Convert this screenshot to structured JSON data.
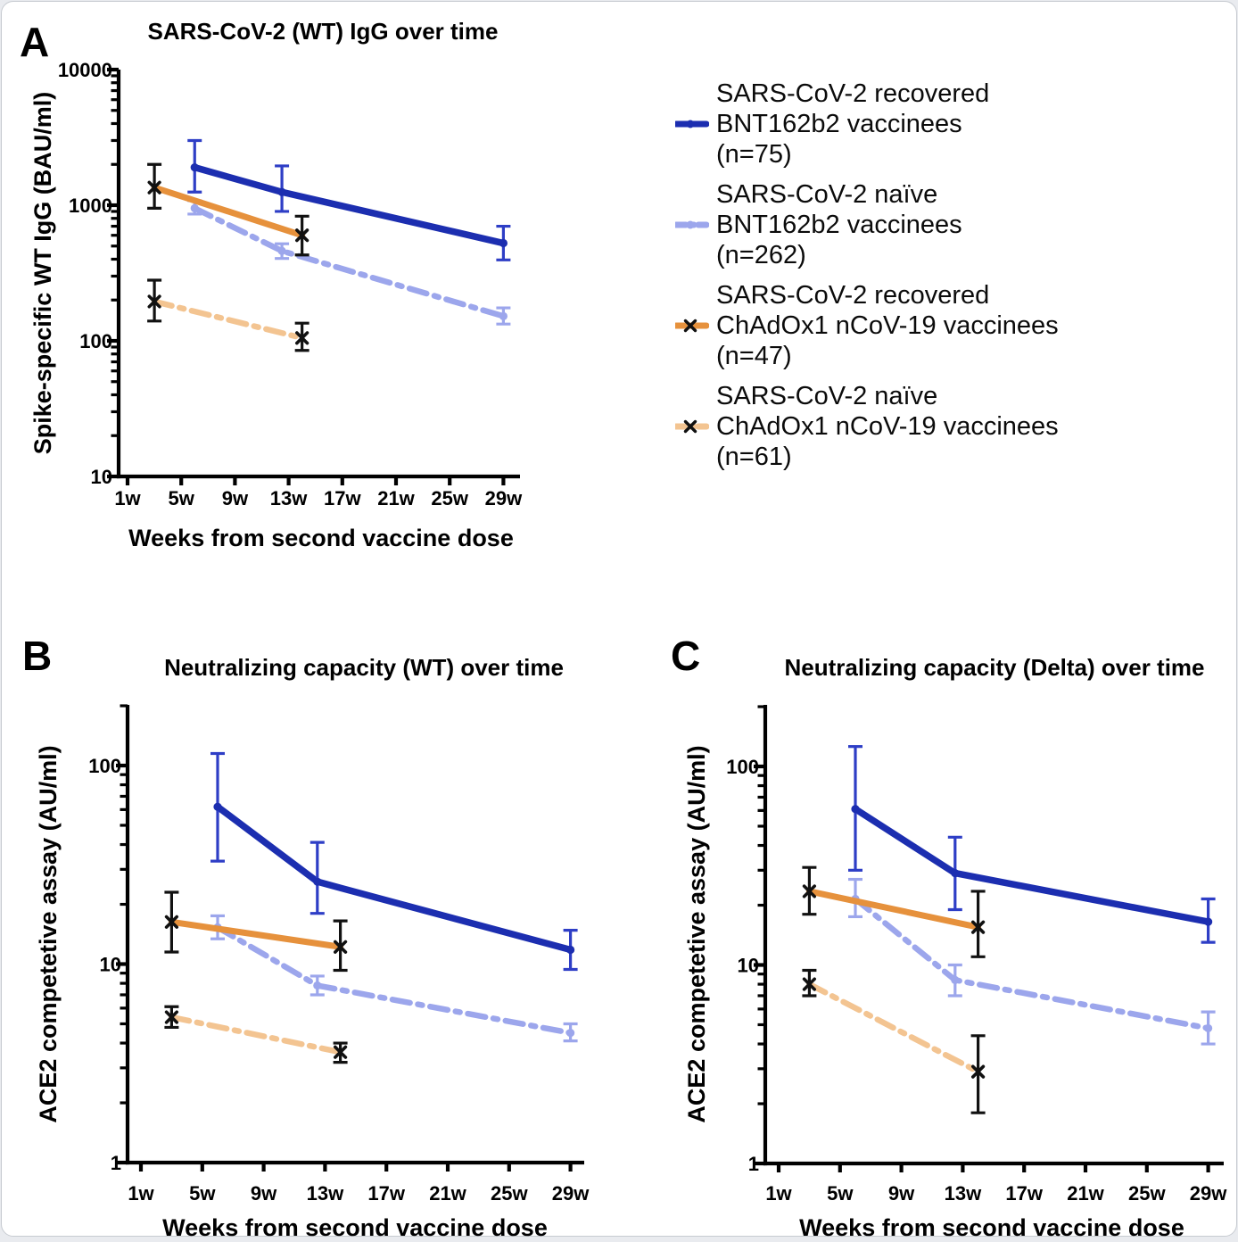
{
  "colors": {
    "dark_blue": "#1c2eb0",
    "dark_blue_err": "#2e3ec6",
    "light_blue": "#9ca6ec",
    "orange": "#e6913c",
    "light_orange": "#f3c491",
    "black": "#111111",
    "axis": "#000000"
  },
  "panel_letters": [
    "A",
    "B",
    "C"
  ],
  "legend": {
    "entries": [
      {
        "line1": "SARS-CoV-2 recovered",
        "line2": "BNT162b2 vaccinees",
        "line3": "(n=75)",
        "series_key": "recovered_bnt",
        "marker": "dot",
        "line_style": "solid",
        "color": "dark_blue"
      },
      {
        "line1": "SARS-CoV-2 naïve",
        "line2": "BNT162b2 vaccinees",
        "line3": "(n=262)",
        "series_key": "naive_bnt",
        "marker": "dot",
        "line_style": "dash_dot",
        "color": "light_blue"
      },
      {
        "line1": "SARS-CoV-2 recovered",
        "line2": "ChAdOx1 nCoV-19 vaccinees",
        "line3": "(n=47)",
        "series_key": "recovered_chad",
        "marker": "x",
        "line_style": "solid",
        "color": "orange"
      },
      {
        "line1": "SARS-CoV-2 naïve",
        "line2": "ChAdOx1 nCoV-19 vaccinees",
        "line3": "(n=61)",
        "series_key": "naive_chad",
        "marker": "x",
        "line_style": "dash_dot",
        "color": "light_orange"
      }
    ]
  },
  "chart_data": [
    {
      "type": "line",
      "panel": "A",
      "title": "SARS-CoV-2 (WT) IgG over time",
      "xlabel": "Weeks from second vaccine dose",
      "ylabel": "Spike-specific WT IgG (BAU/ml)",
      "yscale": "log",
      "ylim": [
        10,
        10000
      ],
      "y_tick_labels": [
        "10",
        "100",
        "1000",
        "10000"
      ],
      "x_tick_labels": [
        "1w",
        "5w",
        "9w",
        "13w",
        "17w",
        "21w",
        "25w",
        "29w"
      ],
      "x_tick_weeks": [
        1,
        5,
        9,
        13,
        17,
        21,
        25,
        29
      ],
      "grid": false,
      "series": [
        {
          "key": "recovered_bnt",
          "name": "SARS-CoV-2 recovered BNT162b2 vaccinees (n=75)",
          "color": "dark_blue",
          "error_color": "dark_blue_err",
          "line": "solid",
          "marker": "dot",
          "points": [
            {
              "week": 6,
              "y": 1900,
              "lo": 1250,
              "hi": 3000
            },
            {
              "week": 12.5,
              "y": 1250,
              "lo": 900,
              "hi": 1950
            },
            {
              "week": 29,
              "y": 525,
              "lo": 395,
              "hi": 700
            }
          ]
        },
        {
          "key": "naive_bnt",
          "name": "SARS-CoV-2 naïve BNT162b2 vaccinees (n=262)",
          "color": "light_blue",
          "error_color": "light_blue",
          "line": "dash_dot",
          "marker": "dot",
          "points": [
            {
              "week": 6,
              "y": 950,
              "lo": 860,
              "hi": 1080
            },
            {
              "week": 12.5,
              "y": 460,
              "lo": 405,
              "hi": 520
            },
            {
              "week": 29,
              "y": 152,
              "lo": 133,
              "hi": 175
            }
          ]
        },
        {
          "key": "recovered_chad",
          "name": "SARS-CoV-2 recovered ChAdOx1 nCoV-19 vaccinees (n=47)",
          "color": "orange",
          "error_color": "black",
          "line": "solid",
          "marker": "x",
          "points": [
            {
              "week": 3,
              "y": 1350,
              "lo": 950,
              "hi": 2000
            },
            {
              "week": 14,
              "y": 600,
              "lo": 430,
              "hi": 830
            }
          ]
        },
        {
          "key": "naive_chad",
          "name": "SARS-CoV-2 naïve ChAdOx1 nCoV-19 vaccinees (n=61)",
          "color": "light_orange",
          "error_color": "black",
          "line": "dash_dot",
          "marker": "x",
          "points": [
            {
              "week": 3,
              "y": 195,
              "lo": 140,
              "hi": 280
            },
            {
              "week": 14,
              "y": 105,
              "lo": 85,
              "hi": 135
            }
          ]
        }
      ]
    },
    {
      "type": "line",
      "panel": "B",
      "title": "Neutralizing capacity (WT) over time",
      "xlabel": "Weeks from second vaccine dose",
      "ylabel": "ACE2 competetive assay (AU/ml)",
      "yscale": "log",
      "ylim": [
        1,
        200
      ],
      "y_tick_labels": [
        "1",
        "10",
        "100"
      ],
      "x_tick_labels": [
        "1w",
        "5w",
        "9w",
        "13w",
        "17w",
        "21w",
        "25w",
        "29w"
      ],
      "x_tick_weeks": [
        1,
        5,
        9,
        13,
        17,
        21,
        25,
        29
      ],
      "grid": false,
      "series": [
        {
          "key": "recovered_bnt",
          "name": "SARS-CoV-2 recovered BNT162b2 vaccinees (n=75)",
          "color": "dark_blue",
          "error_color": "dark_blue_err",
          "line": "solid",
          "marker": "dot",
          "points": [
            {
              "week": 6,
              "y": 62,
              "lo": 33,
              "hi": 115
            },
            {
              "week": 12.5,
              "y": 26,
              "lo": 18,
              "hi": 41
            },
            {
              "week": 29,
              "y": 11.8,
              "lo": 9.4,
              "hi": 14.8
            }
          ]
        },
        {
          "key": "naive_bnt",
          "name": "SARS-CoV-2 naïve BNT162b2 vaccinees (n=262)",
          "color": "light_blue",
          "error_color": "light_blue",
          "line": "dash_dot",
          "marker": "dot",
          "points": [
            {
              "week": 6,
              "y": 15.3,
              "lo": 13.4,
              "hi": 17.5
            },
            {
              "week": 12.5,
              "y": 7.8,
              "lo": 7.0,
              "hi": 8.7
            },
            {
              "week": 29,
              "y": 4.5,
              "lo": 4.1,
              "hi": 5.0
            }
          ]
        },
        {
          "key": "recovered_chad",
          "name": "SARS-CoV-2 recovered ChAdOx1 nCoV-19 vaccinees (n=47)",
          "color": "orange",
          "error_color": "black",
          "line": "solid",
          "marker": "x",
          "points": [
            {
              "week": 3,
              "y": 16.3,
              "lo": 11.5,
              "hi": 23
            },
            {
              "week": 14,
              "y": 12.2,
              "lo": 9.3,
              "hi": 16.5
            }
          ]
        },
        {
          "key": "naive_chad",
          "name": "SARS-CoV-2 naïve ChAdOx1 nCoV-19 vaccinees (n=61)",
          "color": "light_orange",
          "error_color": "black",
          "line": "dash_dot",
          "marker": "x",
          "points": [
            {
              "week": 3,
              "y": 5.4,
              "lo": 4.8,
              "hi": 6.1
            },
            {
              "week": 14,
              "y": 3.6,
              "lo": 3.2,
              "hi": 4.0
            }
          ]
        }
      ]
    },
    {
      "type": "line",
      "panel": "C",
      "title": "Neutralizing capacity (Delta) over time",
      "xlabel": "Weeks from second vaccine dose",
      "ylabel": "ACE2 competetive assay (AU/ml)",
      "yscale": "log",
      "ylim": [
        1,
        200
      ],
      "y_tick_labels": [
        "1",
        "10",
        "100"
      ],
      "x_tick_labels": [
        "1w",
        "5w",
        "9w",
        "13w",
        "17w",
        "21w",
        "25w",
        "29w"
      ],
      "x_tick_weeks": [
        1,
        5,
        9,
        13,
        17,
        21,
        25,
        29
      ],
      "grid": false,
      "series": [
        {
          "key": "recovered_bnt",
          "name": "SARS-CoV-2 recovered BNT162b2 vaccinees (n=75)",
          "color": "dark_blue",
          "error_color": "dark_blue_err",
          "line": "solid",
          "marker": "dot",
          "points": [
            {
              "week": 6,
              "y": 61,
              "lo": 30,
              "hi": 126
            },
            {
              "week": 12.5,
              "y": 29,
              "lo": 19,
              "hi": 44
            },
            {
              "week": 29,
              "y": 16.5,
              "lo": 13,
              "hi": 21.5
            }
          ]
        },
        {
          "key": "naive_bnt",
          "name": "SARS-CoV-2 naïve BNT162b2 vaccinees (n=262)",
          "color": "light_blue",
          "error_color": "light_blue",
          "line": "dash_dot",
          "marker": "dot",
          "points": [
            {
              "week": 6,
              "y": 21.5,
              "lo": 17.5,
              "hi": 27
            },
            {
              "week": 12.5,
              "y": 8.4,
              "lo": 7.0,
              "hi": 10.0
            },
            {
              "week": 29,
              "y": 4.8,
              "lo": 4.0,
              "hi": 5.8
            }
          ]
        },
        {
          "key": "recovered_chad",
          "name": "SARS-CoV-2 recovered ChAdOx1 nCoV-19 vaccinees (n=47)",
          "color": "orange",
          "error_color": "black",
          "line": "solid",
          "marker": "x",
          "points": [
            {
              "week": 3,
              "y": 23.5,
              "lo": 18,
              "hi": 31
            },
            {
              "week": 14,
              "y": 15.5,
              "lo": 11,
              "hi": 23.5
            }
          ]
        },
        {
          "key": "naive_chad",
          "name": "SARS-CoV-2 naïve ChAdOx1 nCoV-19 vaccinees (n=61)",
          "color": "light_orange",
          "error_color": "black",
          "line": "dash_dot",
          "marker": "x",
          "points": [
            {
              "week": 3,
              "y": 8.0,
              "lo": 7.0,
              "hi": 9.4
            },
            {
              "week": 14,
              "y": 2.9,
              "lo": 1.8,
              "hi": 4.4
            }
          ]
        }
      ]
    }
  ]
}
